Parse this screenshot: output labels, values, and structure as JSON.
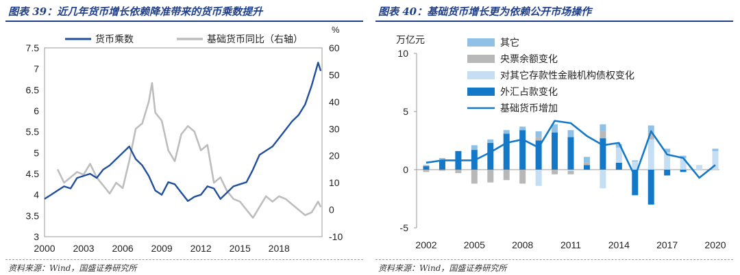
{
  "left": {
    "fig_title": "图表 39：近几年货币增长依赖降准带来的货币乘数提升",
    "source": "资料来源：Wind，国盛证券研究所"
  },
  "right": {
    "fig_title": "图表 40：基础货币增长更为依赖公开市场操作",
    "source": "资料来源：Wind，国盛证券研究所"
  },
  "colors": {
    "title": "#1f3f8a",
    "navy": "#1f4e9c",
    "gray": "#bdbdbd",
    "blue": "#1478c8",
    "light_blue": "#8fc0e6",
    "pale_blue": "#c6def3",
    "mid_gray": "#b8b8b8"
  },
  "chart_data": [
    {
      "type": "line",
      "title": "",
      "xlim": [
        2000,
        2021.3
      ],
      "x_ticks": [
        "2000",
        "2003",
        "2006",
        "2009",
        "2012",
        "2015",
        "2018"
      ],
      "y_left": {
        "lim": [
          3,
          7.5
        ],
        "ticks": [
          "3",
          "3.5",
          "4",
          "4.5",
          "5",
          "5.5",
          "6",
          "6.5",
          "7",
          "7.5"
        ]
      },
      "y_right": {
        "label": "%",
        "lim": [
          -10,
          60
        ],
        "ticks": [
          "-10",
          "0",
          "10",
          "20",
          "30",
          "40",
          "50",
          "60"
        ]
      },
      "legend_position": "top",
      "series": [
        {
          "name": "货币乘数",
          "axis": "left",
          "color": "#1f4e9c",
          "x": [
            2000.0,
            2000.5,
            2001.0,
            2001.5,
            2002.0,
            2002.5,
            2003.0,
            2003.5,
            2004.0,
            2004.5,
            2005.0,
            2005.5,
            2006.0,
            2006.5,
            2007.0,
            2007.5,
            2008.0,
            2008.5,
            2009.0,
            2009.5,
            2010.0,
            2010.5,
            2011.0,
            2011.5,
            2012.0,
            2012.5,
            2013.0,
            2013.5,
            2014.0,
            2014.5,
            2015.0,
            2015.5,
            2016.0,
            2016.5,
            2017.0,
            2017.5,
            2018.0,
            2018.5,
            2019.0,
            2019.5,
            2020.0,
            2020.5,
            2021.0,
            2021.2
          ],
          "y": [
            3.9,
            4.0,
            4.1,
            4.2,
            4.15,
            4.4,
            4.45,
            4.5,
            4.4,
            4.6,
            4.7,
            4.85,
            5.0,
            5.15,
            4.85,
            4.7,
            4.45,
            4.1,
            4.0,
            4.3,
            4.25,
            4.05,
            3.85,
            3.95,
            4.0,
            4.2,
            4.15,
            3.9,
            4.05,
            4.2,
            4.25,
            4.3,
            4.6,
            4.95,
            5.05,
            5.15,
            5.35,
            5.55,
            5.75,
            5.9,
            6.15,
            6.6,
            7.15,
            6.95
          ]
        },
        {
          "name": "基础货币同比（右轴）",
          "axis": "right",
          "color": "#bdbdbd",
          "x": [
            2001.0,
            2001.5,
            2002.0,
            2002.5,
            2003.0,
            2003.5,
            2004.0,
            2004.5,
            2005.0,
            2005.5,
            2006.0,
            2006.5,
            2007.0,
            2007.5,
            2008.0,
            2008.25,
            2008.5,
            2009.0,
            2009.5,
            2010.0,
            2010.5,
            2011.0,
            2011.5,
            2012.0,
            2012.5,
            2013.0,
            2013.5,
            2014.0,
            2014.5,
            2015.0,
            2015.5,
            2016.0,
            2016.5,
            2017.0,
            2017.5,
            2018.0,
            2018.5,
            2019.0,
            2019.5,
            2020.0,
            2020.5,
            2021.0,
            2021.2
          ],
          "y": [
            15,
            10,
            12,
            14,
            13,
            17,
            12,
            9,
            6,
            10,
            8,
            18,
            30,
            32,
            40,
            47,
            36,
            33,
            22,
            18,
            28,
            31,
            29,
            22,
            24,
            10,
            12,
            7,
            4,
            3,
            0,
            -3,
            1,
            5,
            3,
            5,
            4,
            2,
            0,
            -2,
            -1,
            3,
            1
          ]
        }
      ]
    },
    {
      "type": "bar",
      "title": "",
      "ylabel": "万亿元",
      "categories": [
        "2002",
        "2003",
        "2004",
        "2005",
        "2006",
        "2007",
        "2008",
        "2009",
        "2010",
        "2011",
        "2012",
        "2013",
        "2014",
        "2015",
        "2016",
        "2017",
        "2018",
        "2019",
        "2020"
      ],
      "x_tick_labels": [
        "2002",
        "2005",
        "2008",
        "2011",
        "2014",
        "2017",
        "2020"
      ],
      "ylim": [
        -5,
        10
      ],
      "y_ticks": [
        "10",
        "5",
        "0",
        "-5"
      ],
      "legend_position": "top",
      "series": [
        {
          "name": "其它",
          "color": "#8fc0e6",
          "values": [
            0.1,
            0.2,
            0.0,
            0.4,
            0.3,
            0.3,
            0.3,
            0.5,
            0.7,
            0.6,
            0.5,
            0.6,
            0.3,
            0.1,
            0.6,
            0.3,
            0.2,
            0.0,
            0.2
          ]
        },
        {
          "name": "央票余额变化",
          "color": "#b8b8b8",
          "values": [
            -0.2,
            -0.1,
            -0.3,
            -1.2,
            -1.1,
            -0.9,
            -1.2,
            0.3,
            -0.4,
            -0.3,
            0.2,
            0.6,
            0.0,
            0.0,
            0.6,
            0.0,
            0.0,
            0.0,
            0.0
          ]
        },
        {
          "name": "对其它存款性金融机构债权变化",
          "color": "#c6def3",
          "values": [
            0.0,
            0.0,
            0.0,
            0.0,
            0.0,
            0.0,
            0.0,
            -1.4,
            0.0,
            -0.1,
            0.0,
            -1.6,
            1.3,
            0.7,
            2.6,
            1.5,
            1.0,
            0.4,
            1.6
          ]
        },
        {
          "name": "外汇占款变化",
          "color": "#1478c8",
          "values": [
            0.3,
            0.8,
            1.6,
            1.7,
            2.3,
            3.1,
            3.4,
            2.5,
            3.2,
            2.8,
            0.4,
            2.7,
            0.6,
            -2.2,
            -3.0,
            -0.5,
            -0.2,
            0.0,
            0.0
          ]
        },
        {
          "name": "基础货币增加",
          "color": "#1478c8",
          "type": "line",
          "values": [
            0.6,
            0.8,
            0.8,
            0.8,
            1.5,
            2.3,
            2.6,
            1.9,
            4.2,
            4.0,
            2.9,
            2.1,
            2.3,
            -0.6,
            3.3,
            1.3,
            1.0,
            -0.7,
            0.4
          ]
        }
      ]
    }
  ]
}
